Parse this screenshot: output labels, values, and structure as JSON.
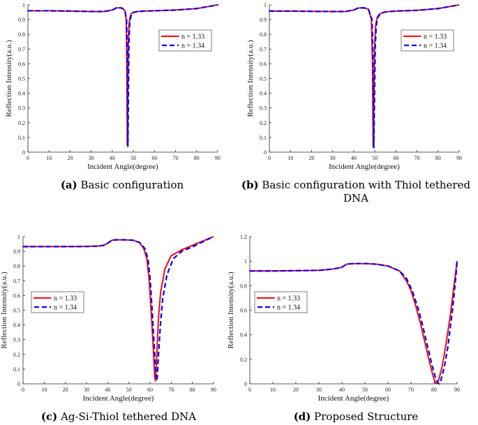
{
  "captions": [
    {
      "letter": "(a)",
      "text": "Basic configuration"
    },
    {
      "letter": "(b)",
      "text": "Basic configuration with Thiol tethered DNA"
    },
    {
      "letter": "(c)",
      "text": "Ag-Si-Thiol tethered DNA"
    },
    {
      "letter": "(d)",
      "text": "Proposed Structure"
    }
  ],
  "colors": {
    "n133": "#ff0000",
    "n134": "#0000ff"
  },
  "chart_data": [
    {
      "type": "line",
      "title": "",
      "xlabel": "Incident Angle(degree)",
      "ylabel": "Reflection Intensity(a.u.)",
      "xlim": [
        0,
        90
      ],
      "ylim": [
        0,
        1
      ],
      "xticks": [
        0,
        10,
        20,
        30,
        40,
        50,
        60,
        70,
        80,
        90
      ],
      "yticks": [
        0,
        0.1,
        0.2,
        0.3,
        0.4,
        0.5,
        0.6,
        0.7,
        0.8,
        0.9,
        1
      ],
      "legend_position": "upper-right",
      "series": [
        {
          "name": "n = 1.33",
          "style": "dotted",
          "color": "#ff0000",
          "x": [
            0,
            10,
            20,
            30,
            36,
            40,
            42,
            44,
            45,
            46,
            46.6,
            46.9,
            47.1,
            47.3,
            47.6,
            48,
            48.5,
            49,
            50,
            52,
            55,
            60,
            70,
            80,
            90
          ],
          "y": [
            0.96,
            0.96,
            0.958,
            0.955,
            0.955,
            0.965,
            0.98,
            0.98,
            0.975,
            0.96,
            0.9,
            0.6,
            0.05,
            0.3,
            0.75,
            0.88,
            0.92,
            0.94,
            0.95,
            0.955,
            0.958,
            0.96,
            0.965,
            0.975,
            1.0
          ]
        },
        {
          "name": "n = 1.34",
          "style": "dashed",
          "color": "#0000ff",
          "x": [
            0,
            10,
            20,
            30,
            36,
            40,
            42,
            44,
            45,
            46,
            46.8,
            47.1,
            47.4,
            47.6,
            47.9,
            48.3,
            48.8,
            49.3,
            50.3,
            52,
            55,
            60,
            70,
            80,
            90
          ],
          "y": [
            0.96,
            0.96,
            0.958,
            0.955,
            0.955,
            0.965,
            0.98,
            0.98,
            0.975,
            0.96,
            0.9,
            0.6,
            0.04,
            0.3,
            0.75,
            0.88,
            0.92,
            0.94,
            0.95,
            0.955,
            0.958,
            0.96,
            0.965,
            0.975,
            1.0
          ]
        }
      ]
    },
    {
      "type": "line",
      "title": "",
      "xlabel": "Incident Angle(degree)",
      "ylabel": "Reflection Intensity(a.u.)",
      "xlim": [
        0,
        90
      ],
      "ylim": [
        0,
        1
      ],
      "xticks": [
        0,
        10,
        20,
        30,
        40,
        50,
        60,
        70,
        80,
        90
      ],
      "yticks": [
        0,
        0.1,
        0.2,
        0.3,
        0.4,
        0.5,
        0.6,
        0.7,
        0.8,
        0.9,
        1
      ],
      "legend_position": "upper-right",
      "series": [
        {
          "name": "n = 1.33",
          "style": "dotted",
          "color": "#ff0000",
          "x": [
            0,
            10,
            20,
            30,
            36,
            40,
            42,
            44,
            45.5,
            47,
            48.4,
            48.9,
            49.2,
            49.5,
            49.9,
            50.4,
            51,
            52,
            54,
            57,
            60,
            70,
            80,
            90
          ],
          "y": [
            0.958,
            0.958,
            0.956,
            0.955,
            0.955,
            0.965,
            0.978,
            0.98,
            0.978,
            0.97,
            0.9,
            0.6,
            0.04,
            0.3,
            0.72,
            0.86,
            0.91,
            0.935,
            0.95,
            0.955,
            0.958,
            0.963,
            0.975,
            1.0
          ]
        },
        {
          "name": "n = 1.34",
          "style": "dashed",
          "color": "#0000ff",
          "x": [
            0,
            10,
            20,
            30,
            36,
            40,
            42,
            44,
            45.5,
            47,
            48.7,
            49.2,
            49.5,
            49.8,
            50.2,
            50.7,
            51.3,
            52.3,
            54.3,
            57,
            60,
            70,
            80,
            90
          ],
          "y": [
            0.958,
            0.958,
            0.956,
            0.955,
            0.955,
            0.965,
            0.978,
            0.98,
            0.978,
            0.97,
            0.9,
            0.6,
            0.03,
            0.3,
            0.72,
            0.86,
            0.91,
            0.935,
            0.95,
            0.955,
            0.958,
            0.963,
            0.975,
            1.0
          ]
        }
      ]
    },
    {
      "type": "line",
      "title": "",
      "xlabel": "Incident Angle(degree)",
      "ylabel": "Reflection Intensity(a.u.)",
      "xlim": [
        0,
        90
      ],
      "ylim": [
        0,
        1
      ],
      "xticks": [
        0,
        10,
        20,
        30,
        40,
        50,
        60,
        70,
        80,
        90
      ],
      "yticks": [
        0,
        0.1,
        0.2,
        0.3,
        0.4,
        0.5,
        0.6,
        0.7,
        0.8,
        0.9,
        1
      ],
      "legend_position": "lower-left",
      "series": [
        {
          "name": "n = 1.33",
          "style": "dotted",
          "color": "#ff0000",
          "x": [
            0,
            10,
            20,
            30,
            35,
            38,
            40,
            42,
            44,
            48,
            52,
            55,
            57,
            58.5,
            59.5,
            60.5,
            61.5,
            62.2,
            62.6,
            63.2,
            64,
            65,
            67,
            70,
            75,
            80,
            85,
            90
          ],
          "y": [
            0.932,
            0.932,
            0.932,
            0.933,
            0.935,
            0.94,
            0.955,
            0.975,
            0.978,
            0.978,
            0.975,
            0.96,
            0.92,
            0.85,
            0.72,
            0.5,
            0.25,
            0.05,
            0.02,
            0.2,
            0.45,
            0.62,
            0.78,
            0.87,
            0.91,
            0.94,
            0.97,
            1.0
          ]
        },
        {
          "name": "n = 1.34",
          "style": "dashed",
          "color": "#0000ff",
          "x": [
            0,
            10,
            20,
            30,
            35,
            38,
            40,
            42,
            44,
            48,
            52,
            55,
            57.5,
            59,
            60,
            61,
            62,
            62.8,
            63.3,
            64,
            65,
            66,
            68,
            71,
            75,
            80,
            85,
            90
          ],
          "y": [
            0.932,
            0.932,
            0.932,
            0.933,
            0.935,
            0.94,
            0.955,
            0.975,
            0.978,
            0.978,
            0.975,
            0.96,
            0.92,
            0.85,
            0.72,
            0.5,
            0.25,
            0.05,
            0.02,
            0.2,
            0.42,
            0.58,
            0.74,
            0.85,
            0.9,
            0.93,
            0.965,
            1.0
          ]
        }
      ]
    },
    {
      "type": "line",
      "title": "",
      "xlabel": "Incident Angle(degree)",
      "ylabel": "Reflection Intensity(a.u.)",
      "xlim": [
        0,
        90
      ],
      "ylim": [
        0,
        1.2
      ],
      "xticks": [
        0,
        10,
        20,
        30,
        40,
        50,
        60,
        70,
        80,
        90
      ],
      "yticks": [
        0,
        0.2,
        0.4,
        0.6,
        0.8,
        1,
        1.2
      ],
      "legend_position": "lower-left",
      "series": [
        {
          "name": "n = 1.33",
          "style": "dotted",
          "color": "#ff0000",
          "x": [
            0,
            10,
            20,
            30,
            36,
            40,
            42,
            45,
            50,
            55,
            60,
            65,
            68,
            70,
            72,
            74,
            76,
            78,
            79.5,
            80.5,
            81.2,
            82,
            83.5,
            85,
            87,
            89,
            90
          ],
          "y": [
            0.92,
            0.92,
            0.922,
            0.925,
            0.935,
            0.95,
            0.975,
            0.98,
            0.98,
            0.975,
            0.96,
            0.92,
            0.84,
            0.76,
            0.64,
            0.5,
            0.34,
            0.18,
            0.07,
            0.01,
            0.0,
            0.03,
            0.14,
            0.3,
            0.55,
            0.85,
            1.0
          ]
        },
        {
          "name": "n = 1.34",
          "style": "dashed",
          "color": "#0000ff",
          "x": [
            0,
            10,
            20,
            30,
            36,
            40,
            42,
            45,
            50,
            55,
            60,
            65,
            68,
            70.5,
            73,
            75,
            77,
            79,
            80.5,
            81.5,
            82.2,
            83,
            84.5,
            86,
            88,
            89.5,
            90
          ],
          "y": [
            0.92,
            0.92,
            0.922,
            0.925,
            0.935,
            0.95,
            0.975,
            0.98,
            0.98,
            0.975,
            0.96,
            0.92,
            0.86,
            0.76,
            0.62,
            0.48,
            0.32,
            0.16,
            0.06,
            0.01,
            0.0,
            0.03,
            0.14,
            0.3,
            0.6,
            0.88,
            1.0
          ]
        }
      ]
    }
  ]
}
